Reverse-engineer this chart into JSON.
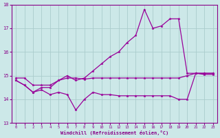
{
  "background_color": "#cce8e8",
  "grid_color": "#aacccc",
  "line_color": "#990099",
  "xlabel": "Windchill (Refroidissement éolien,°C)",
  "xlabel_color": "#880088",
  "tick_color": "#880088",
  "xlim": [
    -0.5,
    23.5
  ],
  "ylim": [
    13,
    18
  ],
  "yticks": [
    13,
    14,
    15,
    16,
    17,
    18
  ],
  "xticks": [
    0,
    1,
    2,
    3,
    4,
    5,
    6,
    7,
    8,
    9,
    10,
    11,
    12,
    13,
    14,
    15,
    16,
    17,
    18,
    19,
    20,
    21,
    22,
    23
  ],
  "series": [
    {
      "x": [
        0,
        1,
        2,
        3,
        4,
        5,
        6,
        7,
        8,
        9,
        10,
        11,
        12,
        13,
        14,
        15,
        16,
        17,
        18,
        19,
        20,
        21,
        22,
        23
      ],
      "y": [
        14.8,
        14.6,
        14.3,
        14.5,
        14.5,
        14.8,
        15.0,
        14.8,
        14.9,
        15.2,
        15.5,
        15.8,
        16.0,
        16.4,
        16.7,
        17.8,
        17.0,
        17.1,
        17.4,
        17.4,
        15.1,
        15.1,
        15.1,
        15.1
      ]
    },
    {
      "x": [
        0,
        1,
        2,
        3,
        4,
        5,
        6,
        7,
        8,
        9,
        10,
        11,
        12,
        13,
        14,
        15,
        16,
        17,
        18,
        19,
        20,
        21,
        22,
        23
      ],
      "y": [
        14.9,
        14.9,
        14.6,
        14.6,
        14.6,
        14.8,
        14.9,
        14.9,
        14.85,
        14.9,
        14.9,
        14.9,
        14.9,
        14.9,
        14.9,
        14.9,
        14.9,
        14.9,
        14.9,
        14.9,
        15.0,
        15.1,
        15.1,
        15.1
      ]
    },
    {
      "x": [
        0,
        1,
        2,
        3,
        4,
        5,
        6,
        7,
        8,
        9,
        10,
        11,
        12,
        13,
        14,
        15,
        16,
        17,
        18,
        19,
        20,
        21,
        22,
        23
      ],
      "y": [
        14.8,
        14.6,
        14.3,
        14.4,
        14.2,
        14.3,
        14.2,
        13.55,
        14.0,
        14.3,
        14.2,
        14.2,
        14.15,
        14.15,
        14.15,
        14.15,
        14.15,
        14.15,
        14.15,
        14.0,
        14.0,
        15.1,
        15.05,
        15.05
      ]
    }
  ]
}
